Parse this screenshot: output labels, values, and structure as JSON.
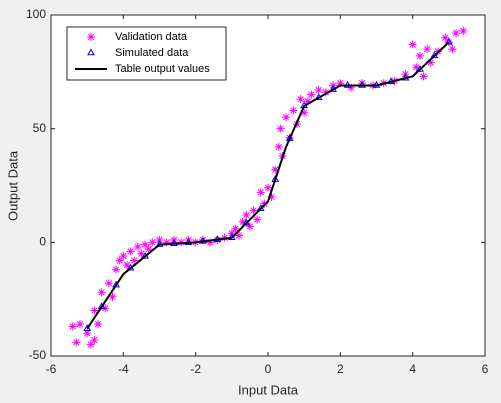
{
  "chart_data": {
    "type": "scatter",
    "xlabel": "Input Data",
    "ylabel": "Output Data",
    "xlim": [
      -6,
      6
    ],
    "ylim": [
      -50,
      100
    ],
    "xticks": [
      -6,
      -4,
      -2,
      0,
      2,
      4,
      6
    ],
    "yticks": [
      -50,
      0,
      50,
      100
    ],
    "legend": "upper left",
    "series": [
      {
        "name": "Validation data",
        "color": "#ff00ff",
        "marker": "asterisk",
        "x": [
          -5.4,
          -5.3,
          -5.2,
          -5.0,
          -4.9,
          -4.8,
          -4.7,
          -4.8,
          -4.6,
          -4.5,
          -4.4,
          -4.3,
          -4.2,
          -4.1,
          -4.0,
          -3.9,
          -3.8,
          -3.7,
          -3.6,
          -3.5,
          -3.4,
          -3.3,
          -3.2,
          -3.0,
          -2.8,
          -2.6,
          -2.4,
          -2.2,
          -2.0,
          -1.8,
          -1.6,
          -1.4,
          -1.2,
          -1.0,
          -0.9,
          -0.8,
          -0.7,
          -0.6,
          -0.5,
          -0.4,
          -0.3,
          -0.2,
          -0.1,
          0,
          0.1,
          0.2,
          0.3,
          0.35,
          0.4,
          0.5,
          0.6,
          0.7,
          0.8,
          0.9,
          1.0,
          1.1,
          1.2,
          1.4,
          1.6,
          1.8,
          2.0,
          2.3,
          2.6,
          2.9,
          3.2,
          3.5,
          3.8,
          4.0,
          4.1,
          4.2,
          4.3,
          4.4,
          4.5,
          4.7,
          4.9,
          5.0,
          5.2,
          5.4,
          5.1
        ],
        "values": [
          -37,
          -44,
          -36,
          -40,
          -45,
          -43,
          -36,
          -30,
          -22,
          -29,
          -18,
          -24,
          -12,
          -8,
          -6,
          -10,
          -4,
          -8,
          -2,
          -5,
          -1,
          -3,
          0,
          1,
          0,
          1,
          0,
          1,
          0,
          1,
          0,
          1,
          2,
          4,
          6,
          3,
          9,
          12,
          7,
          14,
          10,
          22,
          17,
          24,
          20,
          32,
          42,
          50,
          38,
          55,
          46,
          58,
          52,
          63,
          57,
          62,
          65,
          67,
          66,
          69,
          70,
          68,
          70,
          69,
          70,
          71,
          74,
          87,
          77,
          82,
          73,
          85,
          79,
          84,
          90,
          88,
          92,
          93,
          85
        ]
      },
      {
        "name": "Simulated data",
        "color": "#0000ff",
        "marker": "triangle",
        "x": [
          -5,
          -4.6,
          -4.2,
          -3.8,
          -3.4,
          -3.0,
          -2.6,
          -2.2,
          -1.8,
          -1.4,
          -1.0,
          -0.6,
          -0.2,
          0.2,
          0.6,
          1.0,
          1.4,
          1.8,
          2.2,
          2.6,
          3.0,
          3.4,
          3.8,
          4.2,
          4.6,
          5.0
        ],
        "values": [
          -38,
          -28.4,
          -18.8,
          -11.4,
          -6.2,
          -1,
          -0.6,
          -0.2,
          0.4,
          1.2,
          2,
          8.4,
          14.8,
          27.6,
          45.6,
          60,
          63.6,
          67.2,
          69,
          69,
          69,
          70.6,
          72.2,
          76,
          82,
          88
        ]
      },
      {
        "name": "Table output values",
        "color": "#000000",
        "marker": "line",
        "x": [
          -5,
          -4,
          -3,
          -2,
          -1,
          0,
          0.5,
          1,
          2,
          3,
          4,
          5
        ],
        "values": [
          -38,
          -14,
          -1,
          0,
          2,
          18,
          42,
          60,
          69,
          69,
          73,
          88
        ]
      }
    ]
  }
}
